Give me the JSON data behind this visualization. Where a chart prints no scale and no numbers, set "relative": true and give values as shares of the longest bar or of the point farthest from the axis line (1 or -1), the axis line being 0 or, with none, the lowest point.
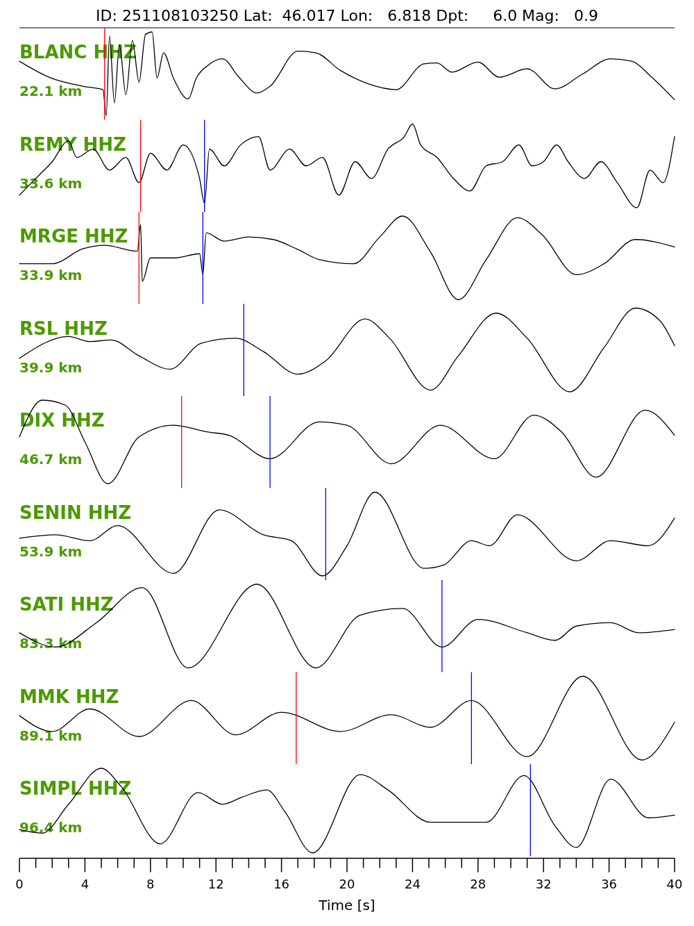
{
  "chart_data": [
    {
      "type": "line",
      "subtitle": "ID: 251108103250 Lat:  46.017 Lon:   6.818 Dpt:     6.0 Mag:   0.9",
      "title": "BLANC HHZ",
      "annotations": [
        "22.1 km"
      ],
      "relative": true,
      "color": "#000000",
      "xlim": [
        0,
        40
      ],
      "tick_labels": false,
      "x": [
        0,
        1.8,
        3.9,
        5.1,
        5.3,
        5.5,
        5.8,
        6.1,
        6.5,
        6.9,
        7.3,
        7.7,
        8.1,
        8.4,
        8.8,
        9.4,
        10.3,
        10.8,
        11.5,
        12.4,
        13.4,
        14.5,
        15.3,
        17,
        18.1,
        19.6,
        21.3,
        23,
        24.7,
        25.5,
        26.4,
        28,
        29.3,
        31,
        32.7,
        34.4,
        36.1,
        37.4,
        38.6,
        40
      ],
      "values": [
        0.65,
        0.46,
        0.35,
        0.31,
        0.0,
        0.95,
        0.15,
        0.85,
        0.25,
        0.9,
        0.4,
        0.97,
        1.0,
        0.45,
        0.75,
        0.45,
        0.2,
        0.45,
        0.6,
        0.68,
        0.46,
        0.27,
        0.35,
        0.77,
        0.75,
        0.54,
        0.38,
        0.31,
        0.62,
        0.63,
        0.52,
        0.64,
        0.46,
        0.56,
        0.32,
        0.5,
        0.68,
        0.65,
        0.46,
        0.19
      ],
      "ref_lines": [
        {
          "axis": "x",
          "value": 5.2,
          "color": "#ff0000"
        }
      ]
    },
    {
      "type": "line",
      "title": "REMY HHZ",
      "annotations": [
        "33.6 km"
      ],
      "relative": true,
      "color": "#000000",
      "xlim": [
        0,
        40
      ],
      "tick_labels": false,
      "x": [
        0,
        1,
        2,
        3,
        3.5,
        4.5,
        5.5,
        6.5,
        7.3,
        8,
        9,
        10,
        11,
        11.3,
        11.6,
        12.5,
        13.5,
        14.6,
        15.3,
        16.5,
        17.5,
        18.5,
        19.5,
        20.5,
        21.5,
        22.5,
        23.5,
        24,
        24.5,
        25.5,
        26.5,
        27.5,
        28.5,
        29.5,
        30.5,
        31.3,
        32,
        32.8,
        33.5,
        34.5,
        35.5,
        36.5,
        37.7,
        38.5,
        39.3,
        40
      ],
      "values": [
        0.15,
        0.35,
        0.55,
        0.8,
        0.6,
        0.7,
        0.45,
        0.6,
        0.3,
        0.65,
        0.45,
        0.75,
        0.35,
        0.05,
        0.7,
        0.5,
        0.75,
        0.85,
        0.45,
        0.7,
        0.5,
        0.6,
        0.15,
        0.55,
        0.35,
        0.7,
        0.85,
        1.0,
        0.75,
        0.6,
        0.35,
        0.2,
        0.5,
        0.55,
        0.75,
        0.5,
        0.55,
        0.75,
        0.55,
        0.35,
        0.55,
        0.3,
        0.0,
        0.45,
        0.3,
        0.85
      ],
      "ref_lines": [
        {
          "axis": "x",
          "value": 7.4,
          "color": "#ff0000"
        },
        {
          "axis": "x",
          "value": 11.3,
          "color": "#0000ff"
        }
      ]
    },
    {
      "type": "line",
      "title": "MRGE HHZ",
      "annotations": [
        "33.9 km"
      ],
      "relative": true,
      "color": "#000000",
      "xlim": [
        0,
        40
      ],
      "tick_labels": false,
      "x": [
        0,
        2,
        3.9,
        5.2,
        7.2,
        7.4,
        7.5,
        8,
        9.5,
        11,
        11.2,
        11.4,
        12.5,
        14,
        15.5,
        17,
        18.3,
        20.4,
        22,
        23.4,
        25.1,
        26.8,
        28.5,
        30.4,
        31.9,
        34,
        35.7,
        37.6,
        40
      ],
      "values": [
        0.43,
        0.43,
        0.61,
        0.65,
        0.58,
        0.9,
        0.22,
        0.5,
        0.5,
        0.55,
        0.3,
        0.8,
        0.7,
        0.75,
        0.72,
        0.6,
        0.48,
        0.43,
        0.75,
        1.0,
        0.57,
        0.0,
        0.48,
        0.98,
        0.78,
        0.3,
        0.43,
        0.72,
        0.63
      ],
      "ref_lines": [
        {
          "axis": "x",
          "value": 7.3,
          "color": "#ff0000"
        },
        {
          "axis": "x",
          "value": 11.2,
          "color": "#0000ff"
        }
      ]
    },
    {
      "type": "line",
      "title": "RSL HHZ",
      "annotations": [
        "39.9 km"
      ],
      "relative": true,
      "color": "#000000",
      "xlim": [
        0,
        40
      ],
      "tick_labels": false,
      "x": [
        0,
        3,
        4.3,
        5.6,
        7.3,
        9.2,
        11.1,
        13.2,
        14.9,
        17,
        18.7,
        21.1,
        22.6,
        25.1,
        26.8,
        29.1,
        31,
        33.6,
        35.7,
        37.6,
        39.1,
        40
      ],
      "values": [
        0.4,
        0.66,
        0.6,
        0.62,
        0.43,
        0.27,
        0.58,
        0.64,
        0.48,
        0.21,
        0.37,
        0.87,
        0.64,
        0.02,
        0.43,
        0.94,
        0.64,
        0.0,
        0.53,
        1.0,
        0.85,
        0.55
      ],
      "ref_lines": [
        {
          "axis": "x",
          "value": 13.7,
          "color": "#0000ff"
        }
      ]
    },
    {
      "type": "line",
      "title": "DIX HHZ",
      "annotations": [
        "46.7 km"
      ],
      "relative": true,
      "color": "#000000",
      "xlim": [
        0,
        40
      ],
      "tick_labels": false,
      "x": [
        0,
        1.4,
        2.8,
        4,
        5.4,
        7.3,
        9.4,
        11.5,
        12.8,
        15.3,
        18.3,
        20,
        22.7,
        25.7,
        29,
        31.4,
        33.1,
        35.2,
        38.2,
        40
      ],
      "values": [
        0.56,
        1.0,
        0.94,
        0.5,
        0.0,
        0.56,
        0.7,
        0.62,
        0.58,
        0.3,
        0.74,
        0.7,
        0.24,
        0.7,
        0.3,
        0.82,
        0.62,
        0.08,
        0.88,
        0.58
      ],
      "ref_lines": [
        {
          "axis": "x",
          "value": 9.9,
          "color": "#ff0000"
        },
        {
          "axis": "x",
          "value": 15.3,
          "color": "#0000ff"
        }
      ]
    },
    {
      "type": "line",
      "title": "SENIN HHZ",
      "annotations": [
        "53.9 km"
      ],
      "relative": true,
      "color": "#000000",
      "xlim": [
        0,
        40
      ],
      "tick_labels": false,
      "x": [
        0,
        2.2,
        4.3,
        6,
        9.4,
        12.2,
        14.9,
        16.6,
        18.5,
        20,
        21.7,
        24.7,
        25.9,
        27.6,
        28.7,
        30.4,
        34,
        36.1,
        38.4,
        40
      ],
      "values": [
        0.45,
        0.49,
        0.42,
        0.6,
        0.03,
        0.79,
        0.49,
        0.42,
        0.0,
        0.36,
        1.0,
        0.09,
        0.13,
        0.42,
        0.36,
        0.73,
        0.18,
        0.42,
        0.36,
        0.69
      ],
      "ref_lines": [
        {
          "axis": "x",
          "value": 18.7,
          "color": "#0000ff"
        }
      ]
    },
    {
      "type": "line",
      "title": "SATI HHZ",
      "annotations": [
        "83.3 km"
      ],
      "relative": true,
      "color": "#000000",
      "xlim": [
        0,
        40
      ],
      "tick_labels": false,
      "x": [
        0,
        2.2,
        4.7,
        7.5,
        10.3,
        14.5,
        18.1,
        20.8,
        23.4,
        25.8,
        28,
        31,
        32.7,
        34,
        36.1,
        37.8,
        40
      ],
      "values": [
        0.42,
        0.25,
        0.54,
        0.96,
        0.0,
        1.0,
        0.0,
        0.63,
        0.71,
        0.25,
        0.58,
        0.42,
        0.33,
        0.5,
        0.54,
        0.42,
        0.46
      ],
      "ref_lines": [
        {
          "axis": "x",
          "value": 25.8,
          "color": "#0000ff"
        }
      ]
    },
    {
      "type": "line",
      "title": "MMK HHZ",
      "annotations": [
        "89.1 km"
      ],
      "relative": true,
      "color": "#000000",
      "xlim": [
        0,
        40
      ],
      "tick_labels": false,
      "x": [
        0,
        2,
        4.3,
        7.3,
        10.5,
        13.2,
        16,
        19.6,
        22.7,
        25.1,
        27.6,
        31,
        34.4,
        38,
        40
      ],
      "values": [
        0.53,
        0.34,
        0.61,
        0.28,
        0.71,
        0.3,
        0.57,
        0.34,
        0.54,
        0.39,
        0.71,
        0.04,
        1.0,
        0.0,
        0.45
      ],
      "ref_lines": [
        {
          "axis": "x",
          "value": 16.9,
          "color": "#ff0000"
        },
        {
          "axis": "x",
          "value": 27.6,
          "color": "#0000ff"
        }
      ]
    },
    {
      "type": "line",
      "title": "SIMPL HHZ",
      "annotations": [
        "96.4 km"
      ],
      "relative": true,
      "color": "#000000",
      "xlim": [
        0,
        40
      ],
      "tick_labels": "x",
      "xlabel": "Time [s]",
      "x": [
        0,
        1.4,
        3,
        5,
        6.2,
        8.6,
        10.9,
        12.4,
        13.6,
        15.1,
        16.2,
        17.9,
        20.8,
        22.5,
        25.1,
        28.5,
        30.8,
        32.7,
        34,
        36.1,
        38.4,
        40
      ],
      "values": [
        0.32,
        0.28,
        0.6,
        1.0,
        0.8,
        0.16,
        0.73,
        0.6,
        0.68,
        0.76,
        0.52,
        0.06,
        0.93,
        0.76,
        0.4,
        0.4,
        0.92,
        0.36,
        0.12,
        0.88,
        0.45,
        0.48
      ],
      "ref_lines": [
        {
          "axis": "x",
          "value": 31.2,
          "color": "#0000ff"
        }
      ],
      "xticks": [
        0,
        {
          "value": 1,
          "label": null
        },
        {
          "value": 2,
          "label": null
        },
        {
          "value": 3,
          "label": null
        },
        4,
        {
          "value": 5,
          "label": null
        },
        {
          "value": 6,
          "label": null
        },
        {
          "value": 7,
          "label": null
        },
        8,
        {
          "value": 9,
          "label": null
        },
        {
          "value": 10,
          "label": null
        },
        {
          "value": 11,
          "label": null
        },
        12,
        {
          "value": 13,
          "label": null
        },
        {
          "value": 14,
          "label": null
        },
        {
          "value": 15,
          "label": null
        },
        16,
        {
          "value": 17,
          "label": null
        },
        {
          "value": 18,
          "label": null
        },
        {
          "value": 19,
          "label": null
        },
        20,
        {
          "value": 21,
          "label": null
        },
        {
          "value": 22,
          "label": null
        },
        {
          "value": 23,
          "label": null
        },
        24,
        {
          "value": 25,
          "label": null
        },
        {
          "value": 26,
          "label": null
        },
        {
          "value": 27,
          "label": null
        },
        28,
        {
          "value": 29,
          "label": null
        },
        {
          "value": 30,
          "label": null
        },
        {
          "value": 31,
          "label": null
        },
        32,
        {
          "value": 33,
          "label": null
        },
        {
          "value": 34,
          "label": null
        },
        {
          "value": 35,
          "label": null
        },
        36,
        {
          "value": 37,
          "label": null
        },
        {
          "value": 38,
          "label": null
        },
        {
          "value": 39,
          "label": null
        },
        40
      ]
    }
  ]
}
